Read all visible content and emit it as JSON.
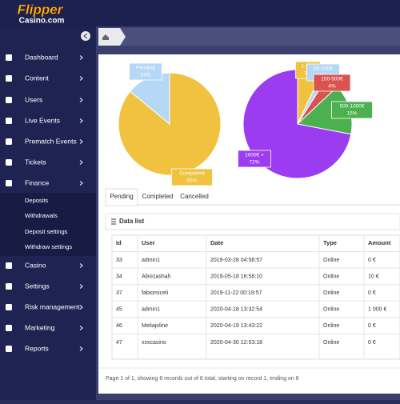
{
  "header": {
    "logo": "Flipper",
    "logo_sub": "Casino.com"
  },
  "sidebar": {
    "items": [
      "Dashboard",
      "Content",
      "Users",
      "Live Events",
      "Prematch Events",
      "Tickets",
      "Finance",
      "Casino",
      "Settings",
      "Risk management",
      "Marketing",
      "Reports"
    ],
    "finance_subitems": [
      "Deposits",
      "Withdrawals",
      "Deposit settings",
      "Withdraw settings"
    ]
  },
  "chart_data": [
    {
      "type": "pie",
      "categories": [
        "Completed",
        "Pending"
      ],
      "values": [
        86,
        14
      ],
      "value_labels": [
        "86%",
        "14%"
      ],
      "colors": [
        "#f1c240",
        "#b5d8f7"
      ]
    },
    {
      "type": "pie",
      "categories": [
        "1-50€",
        "50-150€",
        "150-500€",
        "500-1000€",
        "1000€ >"
      ],
      "values": [
        7,
        2,
        4,
        15,
        72
      ],
      "value_labels": [
        "7%",
        "2%",
        "4%",
        "15%",
        "72%"
      ],
      "colors": [
        "#f1c240",
        "#b5d8f7",
        "#d9534f",
        "#4caf50",
        "#9b3cf0"
      ]
    }
  ],
  "tabs": [
    "Pending",
    "Completed",
    "Cancelled"
  ],
  "panel_title": "Data list",
  "table": {
    "columns": [
      "Id",
      "User",
      "Date",
      "Type",
      "Amount"
    ],
    "rows": [
      [
        "33",
        "admin1",
        "2019-03-28 04:58:57",
        "Online",
        "0 €"
      ],
      [
        "34",
        "Alirezashah",
        "2019-05-18 16:58:10",
        "Online",
        "10 €"
      ],
      [
        "37",
        "fabiomiceli",
        "2019-11-22 00:19:57",
        "Online",
        "0 €"
      ],
      [
        "45",
        "admin1",
        "2020-04-18 13:32:54",
        "Online",
        "1 000 €"
      ],
      [
        "46",
        "Meliajoline",
        "2020-04-19 13:43:22",
        "Online",
        "0 €"
      ],
      [
        "47",
        "xxxcasino",
        "2020-04-30 12:53:18",
        "Online",
        "0 €"
      ]
    ]
  },
  "footer": "Page 1 of 1, showing 6 records out of 6 total, starting on record 1, ending on 6"
}
